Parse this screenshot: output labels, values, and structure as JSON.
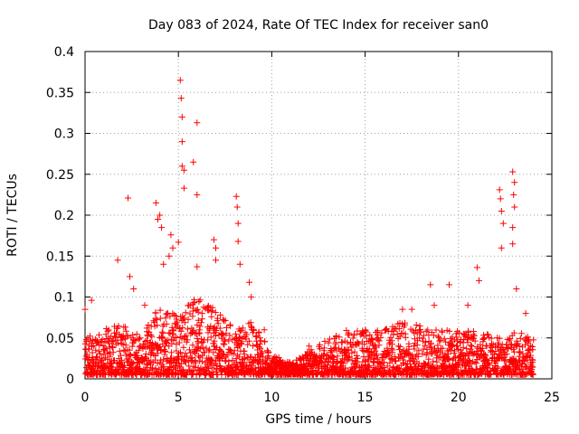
{
  "chart_data": {
    "type": "scatter",
    "title": "Day 083 of 2024, Rate Of TEC Index for receiver san0",
    "xlabel": "GPS time / hours",
    "ylabel": "ROTI / TECUs",
    "xlim": [
      0,
      25
    ],
    "ylim": [
      0,
      0.4
    ],
    "x_ticks": [
      0,
      5,
      10,
      15,
      20,
      25
    ],
    "x_tick_labels": [
      "0",
      "5",
      "10",
      "15",
      "20",
      "25"
    ],
    "y_ticks": [
      0,
      0.05,
      0.1,
      0.15,
      0.2,
      0.25,
      0.3,
      0.35,
      0.4
    ],
    "y_tick_labels": [
      "0",
      "0.05",
      "0.1",
      "0.15",
      "0.2",
      "0.25",
      "0.3",
      "0.35",
      "0.4"
    ],
    "grid": true,
    "marker": "+",
    "marker_color": "#ff0000",
    "x_range_of_data": [
      0,
      24
    ],
    "series": [
      {
        "name": "san0",
        "points": [
          [
            0.0,
            0.085
          ],
          [
            0.35,
            0.096
          ],
          [
            1.75,
            0.145
          ],
          [
            2.3,
            0.221
          ],
          [
            2.4,
            0.125
          ],
          [
            2.6,
            0.11
          ],
          [
            3.2,
            0.09
          ],
          [
            3.8,
            0.215
          ],
          [
            3.9,
            0.195
          ],
          [
            4.0,
            0.2
          ],
          [
            4.1,
            0.185
          ],
          [
            4.2,
            0.14
          ],
          [
            4.5,
            0.15
          ],
          [
            4.6,
            0.176
          ],
          [
            4.7,
            0.16
          ],
          [
            5.0,
            0.167
          ],
          [
            5.1,
            0.365
          ],
          [
            5.15,
            0.343
          ],
          [
            5.2,
            0.32
          ],
          [
            5.2,
            0.29
          ],
          [
            5.2,
            0.26
          ],
          [
            5.3,
            0.233
          ],
          [
            5.3,
            0.255
          ],
          [
            5.8,
            0.265
          ],
          [
            6.0,
            0.313
          ],
          [
            6.0,
            0.225
          ],
          [
            6.0,
            0.137
          ],
          [
            6.9,
            0.17
          ],
          [
            7.0,
            0.16
          ],
          [
            7.0,
            0.145
          ],
          [
            8.1,
            0.223
          ],
          [
            8.15,
            0.21
          ],
          [
            8.2,
            0.19
          ],
          [
            8.2,
            0.168
          ],
          [
            8.3,
            0.14
          ],
          [
            8.8,
            0.118
          ],
          [
            8.9,
            0.1
          ],
          [
            9.6,
            0.06
          ],
          [
            12.0,
            0.04
          ],
          [
            14.8,
            0.055
          ],
          [
            17.0,
            0.085
          ],
          [
            17.5,
            0.085
          ],
          [
            18.5,
            0.115
          ],
          [
            18.7,
            0.09
          ],
          [
            19.5,
            0.115
          ],
          [
            20.5,
            0.09
          ],
          [
            21.0,
            0.136
          ],
          [
            21.1,
            0.12
          ],
          [
            22.2,
            0.231
          ],
          [
            22.25,
            0.22
          ],
          [
            22.3,
            0.205
          ],
          [
            22.4,
            0.19
          ],
          [
            22.3,
            0.16
          ],
          [
            22.9,
            0.253
          ],
          [
            23.0,
            0.24
          ],
          [
            22.95,
            0.225
          ],
          [
            23.0,
            0.21
          ],
          [
            22.9,
            0.185
          ],
          [
            22.9,
            0.165
          ],
          [
            23.1,
            0.11
          ],
          [
            23.6,
            0.08
          ]
        ],
        "dense_band": {
          "x_start": 0,
          "x_end": 24,
          "x_step": 0.05,
          "y_floor": 0.005,
          "y_peak_profile": [
            [
              0,
              0.05
            ],
            [
              1,
              0.06
            ],
            [
              2,
              0.07
            ],
            [
              3,
              0.05
            ],
            [
              4,
              0.09
            ],
            [
              5,
              0.08
            ],
            [
              6,
              0.1
            ],
            [
              7,
              0.09
            ],
            [
              8,
              0.06
            ],
            [
              9,
              0.07
            ],
            [
              10,
              0.03
            ],
            [
              11,
              0.02
            ],
            [
              12,
              0.035
            ],
            [
              13,
              0.05
            ],
            [
              14,
              0.06
            ],
            [
              15,
              0.06
            ],
            [
              16,
              0.06
            ],
            [
              17,
              0.07
            ],
            [
              18,
              0.065
            ],
            [
              19,
              0.06
            ],
            [
              20,
              0.06
            ],
            [
              21,
              0.06
            ],
            [
              22,
              0.05
            ],
            [
              23,
              0.06
            ],
            [
              24,
              0.05
            ]
          ]
        }
      }
    ]
  }
}
